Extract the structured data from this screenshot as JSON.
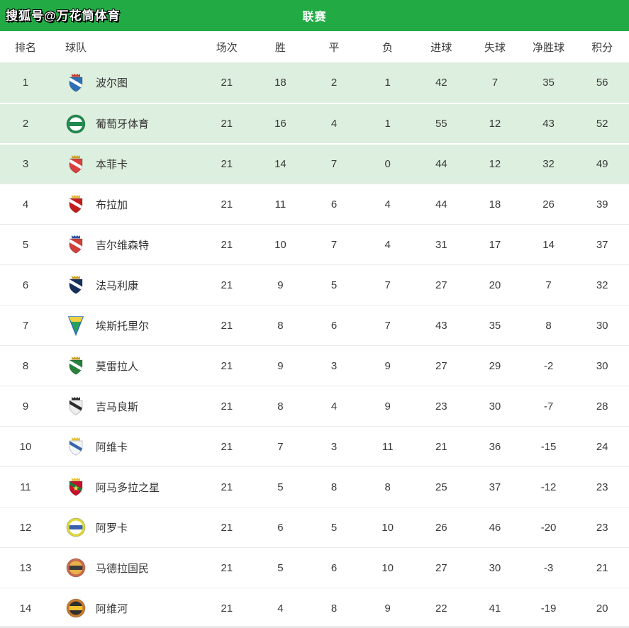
{
  "header": {
    "watermark": "搜狐号@万花筒体育",
    "title": "联赛"
  },
  "colors": {
    "header_green": "#22AB45",
    "highlight_row": "#DDEFDE",
    "row_separator": "#EBEBEB",
    "text": "#333333"
  },
  "columns": [
    {
      "key": "rank",
      "label": "排名"
    },
    {
      "key": "team",
      "label": "球队"
    },
    {
      "key": "played",
      "label": "场次"
    },
    {
      "key": "wins",
      "label": "胜"
    },
    {
      "key": "draws",
      "label": "平"
    },
    {
      "key": "losses",
      "label": "负"
    },
    {
      "key": "goals_for",
      "label": "进球"
    },
    {
      "key": "goals_against",
      "label": "失球"
    },
    {
      "key": "goal_diff",
      "label": "净胜球"
    },
    {
      "key": "points",
      "label": "积分"
    }
  ],
  "rows": [
    {
      "rank": "1",
      "team": "波尔图",
      "highlight": true,
      "logo": {
        "name": "porto-crest",
        "shape": "shield",
        "colors": [
          "#2D6FB5",
          "#FFFFFF",
          "#C23B2E"
        ]
      },
      "played": "21",
      "wins": "18",
      "draws": "2",
      "losses": "1",
      "goals_for": "42",
      "goals_against": "7",
      "goal_diff": "35",
      "points": "56"
    },
    {
      "rank": "2",
      "team": "葡萄牙体育",
      "highlight": true,
      "logo": {
        "name": "sporting-cp-crest",
        "shape": "circle",
        "colors": [
          "#1E8A4C",
          "#FFFFFF",
          "#1E8A4C"
        ]
      },
      "played": "21",
      "wins": "16",
      "draws": "4",
      "losses": "1",
      "goals_for": "55",
      "goals_against": "12",
      "goal_diff": "43",
      "points": "52"
    },
    {
      "rank": "3",
      "team": "本菲卡",
      "highlight": true,
      "logo": {
        "name": "benfica-crest",
        "shape": "shield",
        "colors": [
          "#D8413F",
          "#FFFFFF",
          "#C9A227"
        ]
      },
      "played": "21",
      "wins": "14",
      "draws": "7",
      "losses": "0",
      "goals_for": "44",
      "goals_against": "12",
      "goal_diff": "32",
      "points": "49"
    },
    {
      "rank": "4",
      "team": "布拉加",
      "highlight": false,
      "logo": {
        "name": "braga-crest",
        "shape": "shield",
        "colors": [
          "#C21E1B",
          "#FFFFFF",
          "#E7B93C"
        ]
      },
      "played": "21",
      "wins": "11",
      "draws": "6",
      "losses": "4",
      "goals_for": "44",
      "goals_against": "18",
      "goal_diff": "26",
      "points": "39"
    },
    {
      "rank": "5",
      "team": "吉尔维森特",
      "highlight": false,
      "logo": {
        "name": "gil-vicente-crest",
        "shape": "shield",
        "colors": [
          "#D04038",
          "#FFFFFF",
          "#2B4F9E"
        ]
      },
      "played": "21",
      "wins": "10",
      "draws": "7",
      "losses": "4",
      "goals_for": "31",
      "goals_against": "17",
      "goal_diff": "14",
      "points": "37"
    },
    {
      "rank": "6",
      "team": "法马利康",
      "highlight": false,
      "logo": {
        "name": "famalicao-crest",
        "shape": "shield",
        "colors": [
          "#16305E",
          "#FFFFFF",
          "#C9A227"
        ]
      },
      "played": "21",
      "wins": "9",
      "draws": "5",
      "losses": "7",
      "goals_for": "27",
      "goals_against": "20",
      "goal_diff": "7",
      "points": "32"
    },
    {
      "rank": "7",
      "team": "埃斯托里尔",
      "highlight": false,
      "logo": {
        "name": "estoril-crest",
        "shape": "pennant",
        "colors": [
          "#2BA05A",
          "#EFD23F",
          "#2670B5"
        ]
      },
      "played": "21",
      "wins": "8",
      "draws": "6",
      "losses": "7",
      "goals_for": "43",
      "goals_against": "35",
      "goal_diff": "8",
      "points": "30"
    },
    {
      "rank": "8",
      "team": "莫雷拉人",
      "highlight": false,
      "logo": {
        "name": "moreirense-crest",
        "shape": "shield",
        "colors": [
          "#27803B",
          "#FFFFFF",
          "#C9A227"
        ]
      },
      "played": "21",
      "wins": "9",
      "draws": "3",
      "losses": "9",
      "goals_for": "27",
      "goals_against": "29",
      "goal_diff": "-2",
      "points": "30"
    },
    {
      "rank": "9",
      "team": "吉马良斯",
      "highlight": false,
      "logo": {
        "name": "vitoria-guimaraes-crest",
        "shape": "shield",
        "colors": [
          "#EDEDED",
          "#2B2B2B",
          "#2B2B2B"
        ]
      },
      "played": "21",
      "wins": "8",
      "draws": "4",
      "losses": "9",
      "goals_for": "23",
      "goals_against": "30",
      "goal_diff": "-7",
      "points": "28"
    },
    {
      "rank": "10",
      "team": "阿维卡",
      "highlight": false,
      "logo": {
        "name": "aveca-crest",
        "shape": "shield",
        "colors": [
          "#F4F6F8",
          "#3A63AE",
          "#E4C23A"
        ]
      },
      "played": "21",
      "wins": "7",
      "draws": "3",
      "losses": "11",
      "goals_for": "21",
      "goals_against": "36",
      "goal_diff": "-15",
      "points": "24"
    },
    {
      "rank": "11",
      "team": "阿马多拉之星",
      "highlight": false,
      "logo": {
        "name": "estrela-amadora-crest",
        "shape": "shield",
        "colors": [
          "#C8102E",
          "#1E7A34",
          "#E8C534"
        ],
        "emblem": "star"
      },
      "played": "21",
      "wins": "5",
      "draws": "8",
      "losses": "8",
      "goals_for": "25",
      "goals_against": "37",
      "goal_diff": "-12",
      "points": "23"
    },
    {
      "rank": "12",
      "team": "阿罗卡",
      "highlight": false,
      "logo": {
        "name": "arouca-crest",
        "shape": "circle",
        "colors": [
          "#DFD93B",
          "#FFFFFF",
          "#3A63AE"
        ]
      },
      "played": "21",
      "wins": "6",
      "draws": "5",
      "losses": "10",
      "goals_for": "26",
      "goals_against": "46",
      "goal_diff": "-20",
      "points": "23"
    },
    {
      "rank": "13",
      "team": "马德拉国民",
      "highlight": false,
      "logo": {
        "name": "nacional-madeira-crest",
        "shape": "circle",
        "colors": [
          "#C96A4F",
          "#E8B04A",
          "#3B3B3B"
        ]
      },
      "played": "21",
      "wins": "5",
      "draws": "6",
      "losses": "10",
      "goals_for": "27",
      "goals_against": "30",
      "goal_diff": "-3",
      "points": "21"
    },
    {
      "rank": "14",
      "team": "阿维河",
      "highlight": false,
      "logo": {
        "name": "rio-ave-crest",
        "shape": "circle",
        "colors": [
          "#C87A2E",
          "#2F2F2F",
          "#F2C12E"
        ]
      },
      "played": "21",
      "wins": "4",
      "draws": "8",
      "losses": "9",
      "goals_for": "22",
      "goals_against": "41",
      "goal_diff": "-19",
      "points": "20"
    }
  ]
}
